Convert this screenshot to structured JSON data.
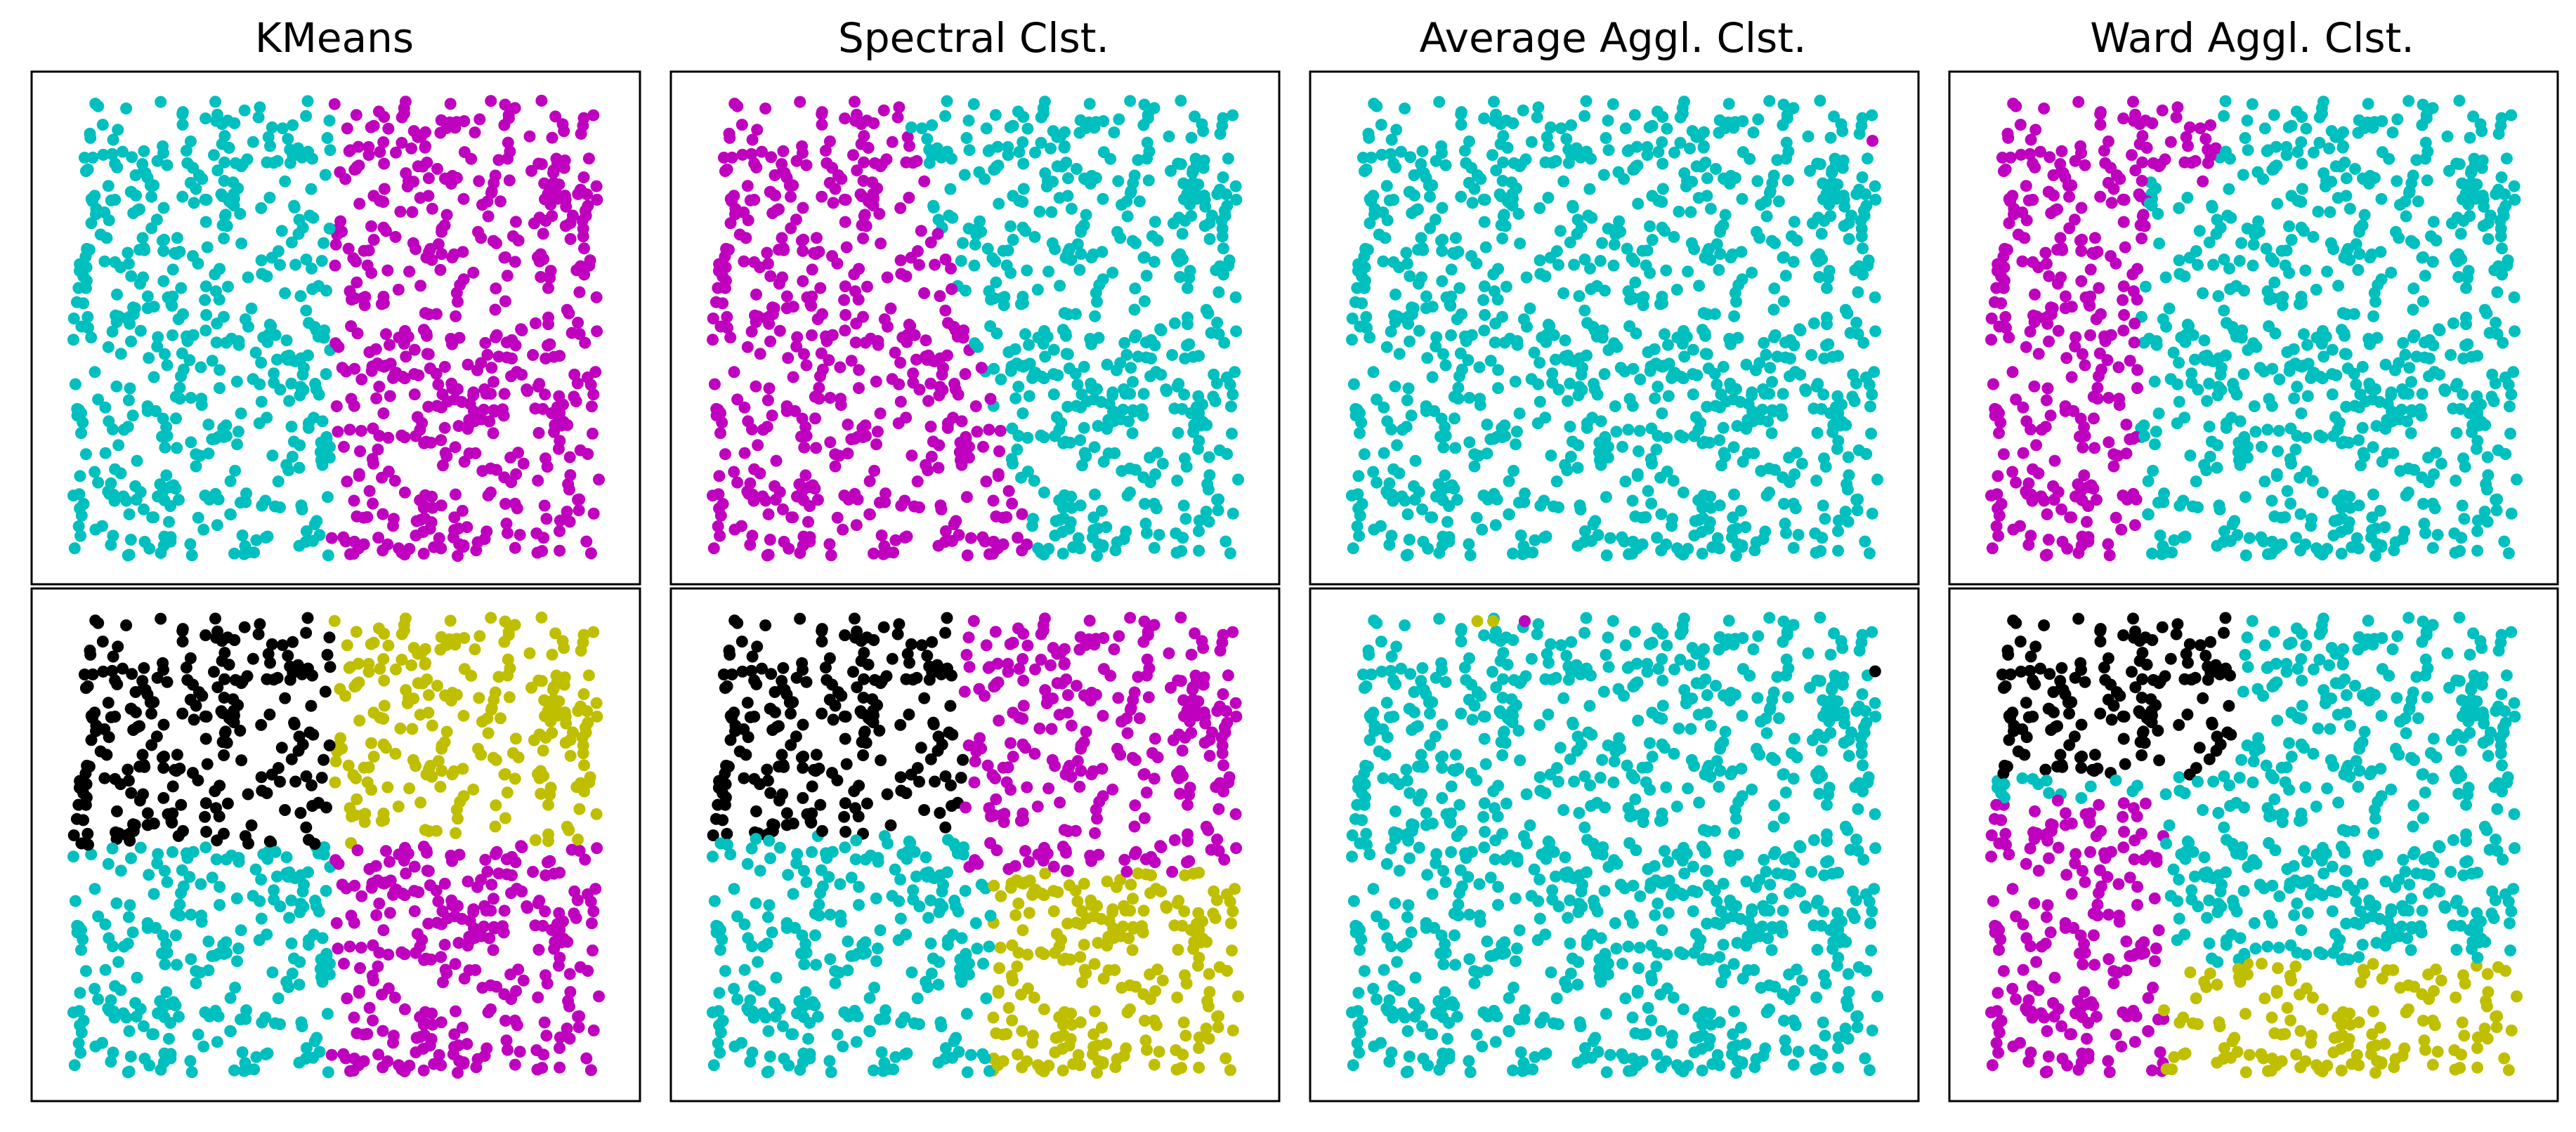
{
  "chart_data": [
    {
      "type": "scatter",
      "title": "KMeans",
      "dataset": "uniform-square",
      "xlim": [
        0,
        1
      ],
      "ylim": [
        0,
        1
      ],
      "grid": false,
      "axes_ticks": false,
      "n_clusters": 2,
      "rule": "vertical split at x = 0.49",
      "clusters": [
        {
          "color": "#00bfbf",
          "region": "x < 0.49"
        },
        {
          "color": "#bf00bf",
          "region": "x >= 0.49"
        }
      ]
    },
    {
      "type": "scatter",
      "title": "Spectral Clst.",
      "dataset": "uniform-square",
      "xlim": [
        0,
        1
      ],
      "ylim": [
        0,
        1
      ],
      "grid": false,
      "axes_ticks": false,
      "n_clusters": 2,
      "rule": "diagonal boundary from top (x = 0.36) to bottom (x = 0.62)",
      "clusters": [
        {
          "color": "#bf00bf",
          "region": "left of diagonal"
        },
        {
          "color": "#00bfbf",
          "region": "right of diagonal"
        }
      ]
    },
    {
      "type": "scatter",
      "title": "Average Aggl. Clst.",
      "dataset": "uniform-square",
      "xlim": [
        0,
        1
      ],
      "ylim": [
        0,
        1
      ],
      "grid": false,
      "axes_ticks": false,
      "n_clusters": 2,
      "rule": "all points in one cluster except a single outlier at top-right",
      "clusters": [
        {
          "color": "#00bfbf",
          "region": "all"
        },
        {
          "color": "#bf00bf",
          "region": "single point",
          "points": [
            [
              0.99,
              0.91
            ]
          ]
        }
      ]
    },
    {
      "type": "scatter",
      "title": "Ward Aggl. Clst.",
      "dataset": "uniform-square",
      "xlim": [
        0,
        1
      ],
      "ylim": [
        0,
        1
      ],
      "grid": false,
      "axes_ticks": false,
      "n_clusters": 2,
      "rule": "left band with stepped boundary",
      "clusters": [
        {
          "color": "#bf00bf",
          "region": "left band (x < ~0.30, upper part wider)"
        },
        {
          "color": "#00bfbf",
          "region": "remainder"
        }
      ]
    },
    {
      "type": "scatter",
      "title": "",
      "dataset": "uniform-square",
      "xlim": [
        0,
        1
      ],
      "ylim": [
        0,
        1
      ],
      "grid": false,
      "axes_ticks": false,
      "n_clusters": 4,
      "rule": "quadrants split at x = 0.49, y = 0.50",
      "clusters": [
        {
          "color": "#000000",
          "region": "top-left"
        },
        {
          "color": "#bfbf00",
          "region": "top-right"
        },
        {
          "color": "#00bfbf",
          "region": "bottom-left"
        },
        {
          "color": "#bf00bf",
          "region": "bottom-right"
        }
      ]
    },
    {
      "type": "scatter",
      "title": "",
      "dataset": "uniform-square",
      "xlim": [
        0,
        1
      ],
      "ylim": [
        0,
        1
      ],
      "grid": false,
      "axes_ticks": false,
      "n_clusters": 4,
      "rule": "offset quadrants",
      "clusters": [
        {
          "color": "#000000",
          "region": "top-left (x < 0.48, y > 0.52)"
        },
        {
          "color": "#bf00bf",
          "region": "top-right (x > 0.42, y > 0.44)"
        },
        {
          "color": "#00bfbf",
          "region": "bottom-left (x < 0.53, y < 0.52)"
        },
        {
          "color": "#bfbf00",
          "region": "bottom-right (x > 0.49, y < 0.44)"
        }
      ]
    },
    {
      "type": "scatter",
      "title": "",
      "dataset": "uniform-square",
      "xlim": [
        0,
        1
      ],
      "ylim": [
        0,
        1
      ],
      "grid": false,
      "axes_ticks": false,
      "n_clusters": 4,
      "rule": "nearly all points in one cluster with tiny outlier clusters",
      "clusters": [
        {
          "color": "#00bfbf",
          "region": "all"
        },
        {
          "color": "#bfbf00",
          "region": "two points",
          "points": [
            [
              0.24,
              0.99
            ],
            [
              0.27,
              0.99
            ]
          ]
        },
        {
          "color": "#bf00bf",
          "region": "single point",
          "points": [
            [
              0.33,
              0.99
            ]
          ]
        },
        {
          "color": "#000000",
          "region": "single point",
          "points": [
            [
              0.995,
              0.88
            ]
          ]
        }
      ]
    },
    {
      "type": "scatter",
      "title": "",
      "dataset": "uniform-square",
      "xlim": [
        0,
        1
      ],
      "ylim": [
        0,
        1
      ],
      "grid": false,
      "axes_ticks": false,
      "n_clusters": 4,
      "rule": "top-left black, left-lower magenta, bottom-right yellow, rest cyan",
      "clusters": [
        {
          "color": "#000000",
          "region": "top-left (x < 0.46, y > 0.65)"
        },
        {
          "color": "#bf00bf",
          "region": "left (x < 0.33, y < 0.60)"
        },
        {
          "color": "#bfbf00",
          "region": "bottom-right (x > 0.30, y < 0.24)"
        },
        {
          "color": "#00bfbf",
          "region": "remainder"
        }
      ]
    }
  ]
}
